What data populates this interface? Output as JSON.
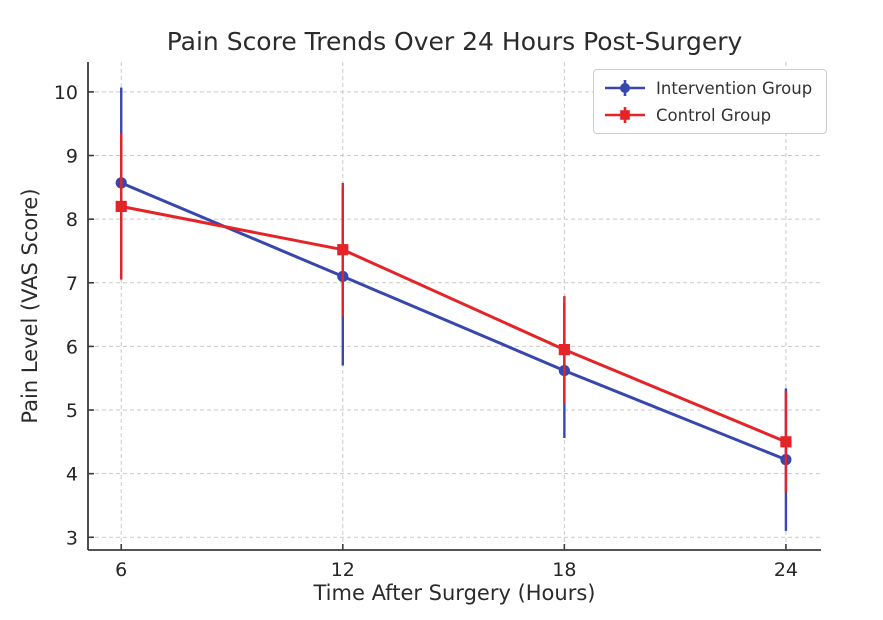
{
  "chart_data": {
    "type": "line",
    "title": "Pain Score Trends Over 24 Hours Post-Surgery",
    "xlabel": "Time After Surgery (Hours)",
    "ylabel": "Pain Level (VAS Score)",
    "x": [
      6,
      12,
      18,
      24
    ],
    "x_tick_labels": [
      "6",
      "12",
      "18",
      "24"
    ],
    "y_ticks": [
      3,
      4,
      5,
      6,
      7,
      8,
      9,
      10
    ],
    "y_tick_labels": [
      "3",
      "4",
      "5",
      "6",
      "7",
      "8",
      "9",
      "10"
    ],
    "xlim": [
      5.1,
      24.95
    ],
    "ylim": [
      2.8,
      10.47
    ],
    "grid": true,
    "grid_style": "dashed",
    "legend_position": "upper right",
    "series": [
      {
        "name": "Intervention Group",
        "marker": "circle",
        "color": "#3847ae",
        "values": [
          8.57,
          7.1,
          5.62,
          4.22
        ],
        "yerr": [
          1.5,
          1.4,
          1.06,
          1.12
        ]
      },
      {
        "name": "Control Group",
        "marker": "square",
        "color": "#e42428",
        "values": [
          8.2,
          7.52,
          5.95,
          4.5
        ],
        "yerr": [
          1.15,
          1.05,
          0.84,
          0.8
        ]
      }
    ],
    "colors": {
      "text": "#2b2b2b",
      "tick_text": "#262626",
      "spine": "#3b3b3b",
      "grid": "#c9c9c9",
      "background": "#ffffff"
    }
  }
}
